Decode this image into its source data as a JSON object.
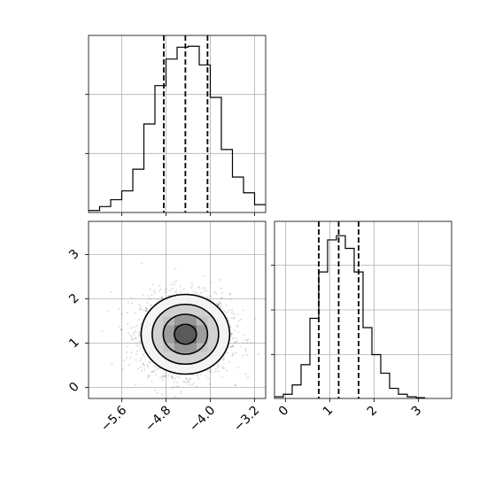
{
  "chart_data": [
    {
      "type": "histogram",
      "parameter_index": 0,
      "bin_edges": [
        -6.2,
        -6.0,
        -5.8,
        -5.6,
        -5.4,
        -5.2,
        -5.0,
        -4.8,
        -4.6,
        -4.4,
        -4.2,
        -4.0,
        -3.8,
        -3.6,
        -3.4,
        -3.2,
        -3.0
      ],
      "counts": [
        2,
        6,
        13,
        22,
        44,
        90,
        129,
        156,
        168,
        169,
        150,
        117,
        64,
        36,
        20,
        8
      ],
      "quantiles": [
        -4.84,
        -4.45,
        -4.05
      ],
      "xlim": [
        -6.2,
        -3.0
      ],
      "ylim": [
        0,
        180
      ],
      "grid": true,
      "y_tick_labels_shown": false
    },
    {
      "type": "scatter_density_contour",
      "parameters": [
        0,
        1
      ],
      "x_range": [
        -6.2,
        -3.0
      ],
      "y_range": [
        -0.25,
        3.75
      ],
      "x_ticks": [
        "−5.6",
        "−4.8",
        "−4.0",
        "−3.2"
      ],
      "x_tick_values": [
        -5.6,
        -4.8,
        -4.0,
        -3.2
      ],
      "y_ticks": [
        "0",
        "1",
        "2",
        "3"
      ],
      "y_tick_values": [
        0,
        1,
        2,
        3
      ],
      "center": [
        -4.45,
        1.2
      ],
      "spread": [
        0.4,
        0.45
      ],
      "contour_levels_sigma": [
        0.5,
        1.0,
        1.5,
        2.0
      ],
      "grid": true
    },
    {
      "type": "histogram",
      "parameter_index": 1,
      "bin_edges": [
        -0.25,
        -0.05,
        0.15,
        0.35,
        0.55,
        0.75,
        0.95,
        1.15,
        1.35,
        1.55,
        1.75,
        1.95,
        2.15,
        2.35,
        2.55,
        2.75,
        2.95,
        3.15
      ],
      "counts": [
        2,
        5,
        16,
        40,
        95,
        150,
        188,
        193,
        178,
        150,
        84,
        52,
        30,
        12,
        5,
        2,
        1
      ],
      "quantiles": [
        0.75,
        1.2,
        1.65
      ],
      "xlim": [
        -0.25,
        3.75
      ],
      "ylim": [
        0,
        210
      ],
      "x_ticks": [
        "0",
        "1",
        "2",
        "3"
      ],
      "x_tick_values": [
        0,
        1,
        2,
        3
      ],
      "grid": true,
      "y_tick_labels_shown": false
    }
  ]
}
